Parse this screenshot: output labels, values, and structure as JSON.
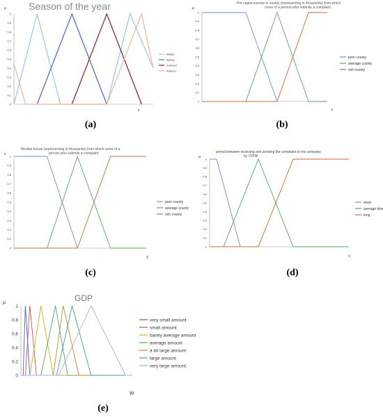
{
  "captions": [
    "(a)",
    "(b)",
    "(c)",
    "(d)",
    "(e)"
  ],
  "chart_data": [
    {
      "type": "line",
      "title": "Season of the year",
      "ylabel": "μ",
      "xlabel": "x",
      "yticks": [
        "0",
        "0.1",
        "0.2",
        "0.3",
        "0.4",
        "0.5",
        "0.6",
        "0.7",
        "0.8",
        "0.9",
        "1"
      ],
      "ylim": [
        0,
        1
      ],
      "xlim": [
        0,
        12
      ],
      "legend_position": "right",
      "series": [
        {
          "name": "Winter",
          "color": "#9dc3e6",
          "x": [
            0,
            2,
            4,
            8,
            10,
            12
          ],
          "y": [
            0,
            1,
            0,
            0,
            1,
            0.4
          ]
        },
        {
          "name": "Spring",
          "color": "#4a5fc1",
          "x": [
            2,
            5,
            8
          ],
          "y": [
            0,
            1,
            0
          ]
        },
        {
          "name": "Summer",
          "color": "#8b1a1a",
          "x": [
            5,
            8,
            11
          ],
          "y": [
            0,
            1,
            0
          ]
        },
        {
          "name": "Autumn",
          "color": "#e8b89a",
          "x": [
            0,
            1,
            8,
            11,
            12
          ],
          "y": [
            0.45,
            0,
            0,
            1,
            0.4
          ]
        }
      ]
    },
    {
      "type": "line",
      "title": "Per capita income in county (representing in thousands) from which come of a person who submits a complaint",
      "ylabel": "μ",
      "xlabel": "Y",
      "yticks": [
        "0",
        "0.1",
        "0.2",
        "0.3",
        "0.4",
        "0.5",
        "0.6",
        "0.7",
        "0.8",
        "0.9",
        "1"
      ],
      "ylim": [
        0,
        1
      ],
      "xlim": [
        0,
        10
      ],
      "legend_position": "right",
      "series": [
        {
          "name": "poor county",
          "color": "#6d8fd8",
          "x": [
            0,
            3.5,
            6
          ],
          "y": [
            1,
            1,
            0
          ]
        },
        {
          "name": "average county",
          "color": "#5aa363",
          "x": [
            0,
            3.5,
            6,
            8.5,
            10
          ],
          "y": [
            0,
            0,
            1,
            0,
            0
          ]
        },
        {
          "name": "rich county",
          "color": "#c76a3c",
          "x": [
            0,
            6,
            8.5,
            10
          ],
          "y": [
            0,
            0,
            1,
            1
          ]
        }
      ]
    },
    {
      "type": "line",
      "title": "Median house (representing in thousands) from which come of a person who submits a complaint",
      "ylabel": "x",
      "xlabel": "Z",
      "yticks": [
        "0",
        "0.1",
        "0.2",
        "0.3",
        "0.4",
        "0.5",
        "0.6",
        "0.7",
        "0.8",
        "0.9",
        "1"
      ],
      "ylim": [
        0,
        1
      ],
      "xlim": [
        0,
        10
      ],
      "legend_position": "right",
      "series": [
        {
          "name": "poor county",
          "color": "#6d8fd8",
          "x": [
            0,
            2.5,
            4.8
          ],
          "y": [
            1,
            1,
            0
          ]
        },
        {
          "name": "average county",
          "color": "#5aa363",
          "x": [
            0,
            2.5,
            4.8,
            7.3,
            10
          ],
          "y": [
            0,
            0,
            1,
            0,
            0
          ]
        },
        {
          "name": "rich county",
          "color": "#c76a3c",
          "x": [
            0,
            4.8,
            7.3,
            10
          ],
          "y": [
            0,
            0,
            1,
            1
          ]
        }
      ]
    },
    {
      "type": "line",
      "title": "period between receiving and sending the complaint to the company by CFPB",
      "ylabel": "μ",
      "xlabel": "V",
      "yticks": [
        "0",
        "0.1",
        "0.2",
        "0.3",
        "0.4",
        "0.5",
        "0.6",
        "0.7",
        "0.8",
        "0.9",
        "1"
      ],
      "ylim": [
        0,
        1
      ],
      "xlim": [
        0,
        10
      ],
      "legend_position": "right",
      "series": [
        {
          "name": "short",
          "color": "#6d8fd8",
          "x": [
            0,
            0.5,
            2.2
          ],
          "y": [
            1,
            1,
            0
          ]
        },
        {
          "name": "average time",
          "color": "#5aa363",
          "x": [
            0,
            1,
            3.5,
            6,
            10
          ],
          "y": [
            0,
            0,
            1,
            0,
            0
          ]
        },
        {
          "name": "long",
          "color": "#c76a3c",
          "x": [
            0,
            3.5,
            6,
            10
          ],
          "y": [
            0,
            0,
            1,
            1
          ]
        }
      ]
    },
    {
      "type": "line",
      "title": "GDP",
      "ylabel": "μ",
      "xlabel": "W",
      "yticks": [
        "0",
        "0.2",
        "0.4",
        "0.6",
        "0.8",
        "1"
      ],
      "ylim": [
        0,
        1
      ],
      "xlim": [
        0,
        10
      ],
      "legend_position": "right",
      "series": [
        {
          "name": "very small amount",
          "color": "#4a5fc1",
          "x": [
            0,
            0.2,
            0.4,
            0.8,
            10
          ],
          "y": [
            0,
            0,
            1,
            0,
            0
          ]
        },
        {
          "name": "small amount",
          "color": "#c0504d",
          "x": [
            0,
            0.4,
            0.8,
            1.4,
            10
          ],
          "y": [
            0,
            0,
            1,
            0,
            0
          ]
        },
        {
          "name": "barely average amount",
          "color": "#c9b21a",
          "x": [
            0,
            0.8,
            1.8,
            2.9,
            10
          ],
          "y": [
            0,
            0,
            1,
            0,
            0
          ]
        },
        {
          "name": "average amount",
          "color": "#5aa363",
          "x": [
            0,
            1.8,
            3.1,
            4.2,
            10
          ],
          "y": [
            0,
            0,
            1,
            0,
            0
          ]
        },
        {
          "name": "a bit large amount",
          "color": "#c88a2e",
          "x": [
            0,
            2.9,
            3.8,
            5.2,
            10
          ],
          "y": [
            0,
            0,
            1,
            0,
            0
          ]
        },
        {
          "name": "large amount",
          "color": "#4e9b8f",
          "x": [
            0,
            3.2,
            4.6,
            6.3,
            10
          ],
          "y": [
            0,
            0,
            1,
            0,
            0
          ]
        },
        {
          "name": "very large amount",
          "color": "#9fb0e6",
          "x": [
            0,
            3.4,
            6.3,
            9.4,
            10
          ],
          "y": [
            0,
            0,
            1,
            0,
            0
          ]
        }
      ]
    }
  ]
}
